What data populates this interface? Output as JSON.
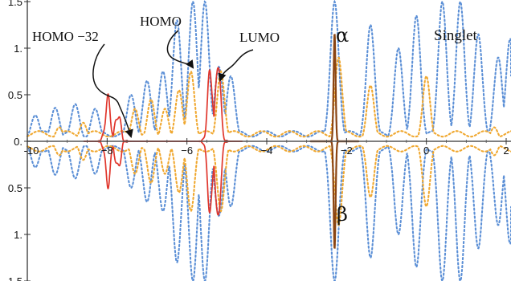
{
  "chart_data": {
    "type": "line",
    "title": "",
    "xlabel": "",
    "ylabel": "",
    "xlim": [
      -10,
      2
    ],
    "ylim": [
      -1.5,
      1.5
    ],
    "x_ticks": [
      -10,
      -8,
      -6,
      -4,
      -2,
      0,
      2
    ],
    "x_tick_labels": [
      "-10",
      "−8",
      "−6",
      "−4",
      "−2",
      "0",
      "2"
    ],
    "y_ticks": [
      1.5,
      1,
      0.5,
      0,
      -0.5,
      -1,
      -1.5
    ],
    "y_tick_labels": [
      "1.5",
      "1.",
      "0.5",
      "0.",
      "0.5",
      "1.",
      "1.5"
    ],
    "grid": false,
    "colors": {
      "blue": "#5b8fd6",
      "orange": "#f0a830",
      "red": "#e0362c",
      "brown": "#8b4513"
    },
    "series": [
      {
        "style": "dotted",
        "color": "blue",
        "peaks": [
          {
            "x": -9.8,
            "h": 0.28
          },
          {
            "x": -9.3,
            "h": 0.36
          },
          {
            "x": -8.8,
            "h": 0.4
          },
          {
            "x": -8.3,
            "h": 0.35
          },
          {
            "x": -7.4,
            "h": 0.5
          },
          {
            "x": -7.0,
            "h": 0.65
          },
          {
            "x": -6.6,
            "h": 0.75
          },
          {
            "x": -6.25,
            "h": 1.3
          },
          {
            "x": -5.85,
            "h": 1.5
          },
          {
            "x": -5.55,
            "h": 1.5
          },
          {
            "x": -5.2,
            "h": 0.8
          },
          {
            "x": -4.9,
            "h": 0.7
          },
          {
            "x": -2.3,
            "h": 1.5
          },
          {
            "x": -1.4,
            "h": 1.25
          },
          {
            "x": -0.7,
            "h": 1.0
          },
          {
            "x": -0.25,
            "h": 1.35
          },
          {
            "x": 0.4,
            "h": 1.5
          },
          {
            "x": 0.85,
            "h": 1.5
          },
          {
            "x": 1.3,
            "h": 1.15
          },
          {
            "x": 1.8,
            "h": 0.9
          },
          {
            "x": 2.1,
            "h": 1.1
          }
        ]
      },
      {
        "style": "dotted",
        "color": "orange",
        "peaks": [
          {
            "x": -9.8,
            "h": 0.1
          },
          {
            "x": -9.2,
            "h": 0.15
          },
          {
            "x": -8.6,
            "h": 0.2
          },
          {
            "x": -7.3,
            "h": 0.35
          },
          {
            "x": -6.9,
            "h": 0.45
          },
          {
            "x": -6.55,
            "h": 0.35
          },
          {
            "x": -6.2,
            "h": 0.55
          },
          {
            "x": -5.9,
            "h": 0.75
          },
          {
            "x": -5.15,
            "h": 0.75
          },
          {
            "x": -2.2,
            "h": 0.9
          },
          {
            "x": -1.4,
            "h": 0.6
          },
          {
            "x": 0.0,
            "h": 0.7
          },
          {
            "x": 1.7,
            "h": 0.15
          }
        ]
      },
      {
        "style": "solid",
        "color": "red",
        "peaks": [
          {
            "x": -7.98,
            "h": 0.45
          },
          {
            "x": -7.73,
            "h": 0.3
          },
          {
            "x": -5.42,
            "h": 0.75
          },
          {
            "x": -5.22,
            "h": 0.85
          }
        ]
      },
      {
        "style": "solid",
        "color": "brown",
        "peaks": [
          {
            "x": -2.3,
            "h": 1.15
          }
        ]
      }
    ],
    "annotations": [
      {
        "text": "HOMO −32",
        "x": -7.8,
        "y": 0.2
      },
      {
        "text": "HOMO",
        "x": -5.9,
        "y": 0.65
      },
      {
        "text": "LUMO",
        "x": -5.3,
        "y": 0.7
      },
      {
        "text": "α"
      },
      {
        "text": "β"
      },
      {
        "text": "Singlet"
      }
    ]
  }
}
